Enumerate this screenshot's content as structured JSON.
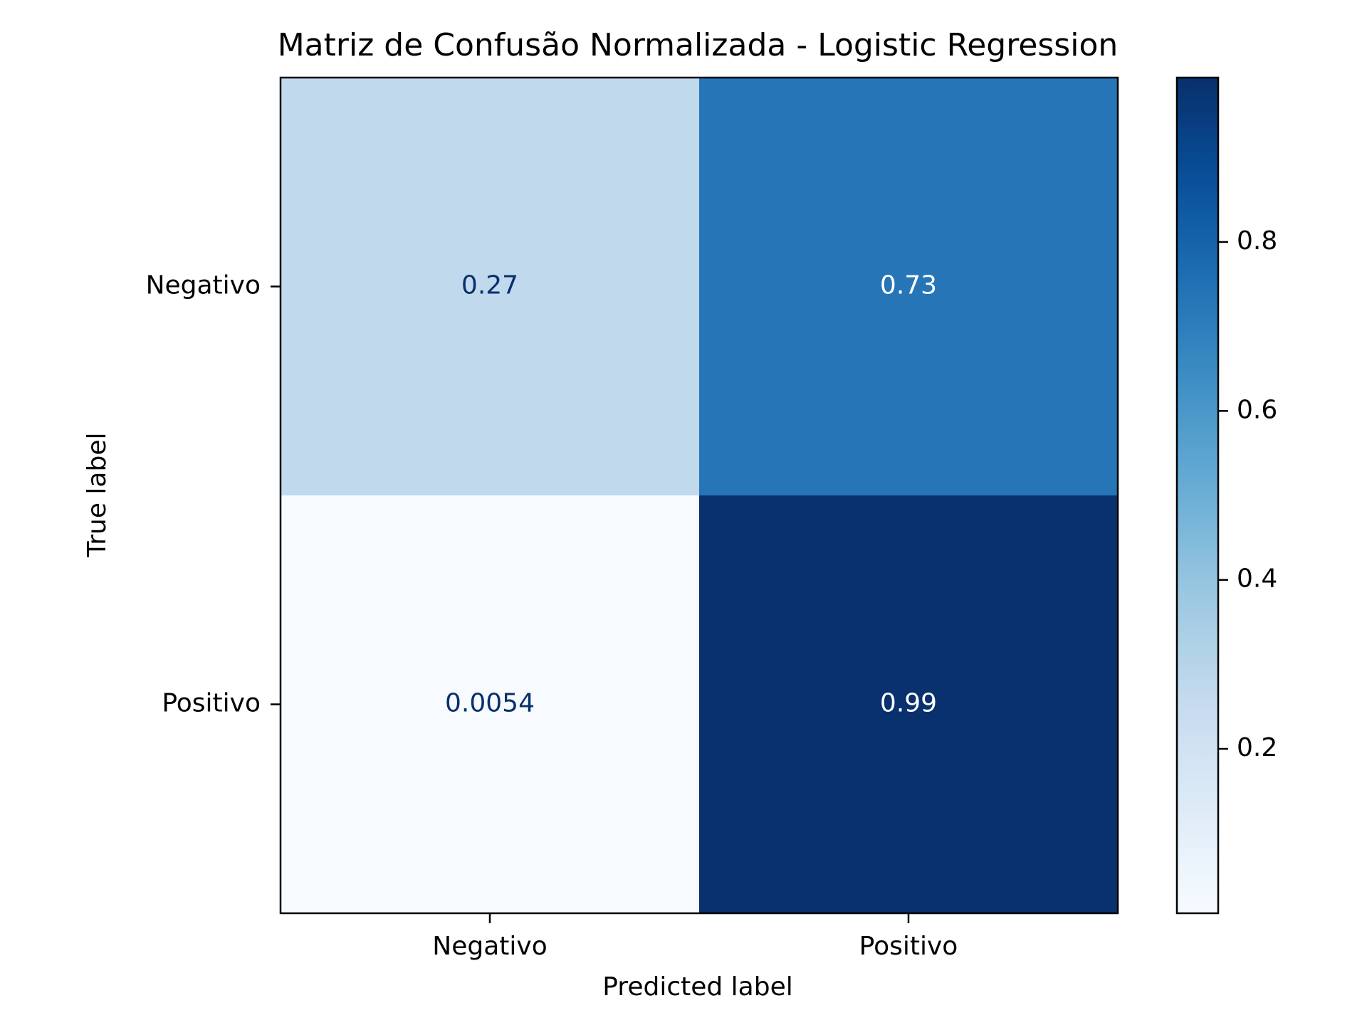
{
  "chart_data": {
    "type": "heatmap",
    "title": "Matriz de Confusão Normalizada - Logistic Regression",
    "xlabel": "Predicted label",
    "ylabel": "True label",
    "x_categories": [
      "Negativo",
      "Positivo"
    ],
    "y_categories": [
      "Negativo",
      "Positivo"
    ],
    "values": [
      [
        0.27,
        0.73
      ],
      [
        0.0054,
        0.99
      ]
    ],
    "cell_labels": [
      [
        "0.27",
        "0.73"
      ],
      [
        "0.0054",
        "0.99"
      ]
    ],
    "colormap": "Blues",
    "colorbar": {
      "range": [
        0.0054,
        0.9946
      ],
      "ticks": [
        0.2,
        0.4,
        0.6,
        0.8
      ],
      "tick_labels": [
        "0.2",
        "0.4",
        "0.6",
        "0.8"
      ]
    },
    "grid": false,
    "legend": "none"
  },
  "colors": {
    "text_dark": "#08306b",
    "text_light": "#ffffff",
    "axis": "#000000"
  }
}
